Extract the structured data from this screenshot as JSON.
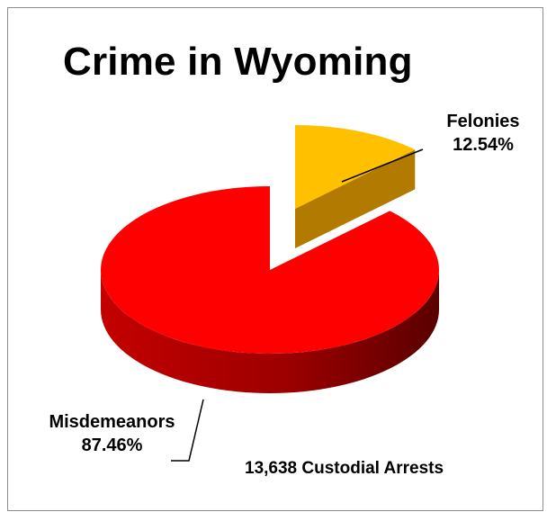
{
  "chart_data": {
    "type": "pie",
    "title": "Crime in Wyoming",
    "slices": [
      {
        "label": "Misdemeanors",
        "percent_text": "87.46%",
        "value": 87.46,
        "color": "#ff0000",
        "side_color": "#a30000"
      },
      {
        "label": "Felonies",
        "percent_text": "12.54%",
        "value": 12.54,
        "color": "#ffc000",
        "side_color": "#b37a00",
        "exploded": true
      }
    ],
    "annotation": "13,638 Custodial Arrests",
    "style": "3d-exploded"
  }
}
